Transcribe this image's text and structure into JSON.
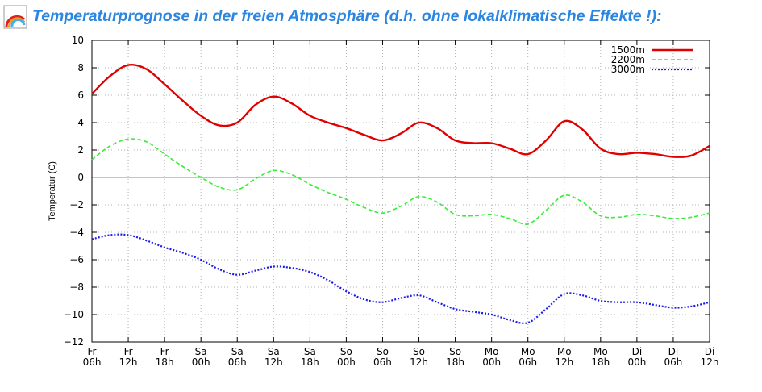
{
  "header": {
    "title": "Temperaturprognose in der freien Atmosphäre (d.h. ohne lokalklimatische Effekte !):",
    "logo_icon": "rainbow-icon"
  },
  "colors": {
    "title": "#2a86e0",
    "series_1500": "#e00000",
    "series_2200": "#33ee33",
    "series_3000": "#1a1aee",
    "grid": "#b0b0b0",
    "zero_line": "#a0a0a0"
  },
  "chart_data": {
    "type": "line",
    "title": "",
    "ylabel": "Temperatur (C)",
    "xlabel": "",
    "ylim": [
      -12,
      10
    ],
    "yticks": [
      "10",
      "8",
      "6",
      "4",
      "2",
      "0",
      "−2",
      "−4",
      "−6",
      "−8",
      "−10",
      "−12"
    ],
    "grid": true,
    "legend_position": "top-right",
    "x_categories": [
      [
        "Fr",
        "06h"
      ],
      [
        "Fr",
        "12h"
      ],
      [
        "Fr",
        "18h"
      ],
      [
        "Sa",
        "00h"
      ],
      [
        "Sa",
        "06h"
      ],
      [
        "Sa",
        "12h"
      ],
      [
        "Sa",
        "18h"
      ],
      [
        "So",
        "00h"
      ],
      [
        "So",
        "06h"
      ],
      [
        "So",
        "12h"
      ],
      [
        "So",
        "18h"
      ],
      [
        "Mo",
        "00h"
      ],
      [
        "Mo",
        "06h"
      ],
      [
        "Mo",
        "12h"
      ],
      [
        "Mo",
        "18h"
      ],
      [
        "Di",
        "00h"
      ],
      [
        "Di",
        "06h"
      ],
      [
        "Di",
        "12h"
      ]
    ],
    "x_hours": [
      0,
      3,
      6,
      9,
      12,
      15,
      18,
      21,
      24,
      27,
      30,
      33,
      36,
      39,
      42,
      45,
      48,
      51,
      54,
      57,
      60,
      63,
      66,
      69,
      72,
      75,
      78,
      81,
      84,
      87,
      90,
      93,
      96,
      99,
      102
    ],
    "series": [
      {
        "name": "1500m",
        "style": "solid",
        "values": [
          6.1,
          7.4,
          8.2,
          7.9,
          6.8,
          5.6,
          4.5,
          3.8,
          4.0,
          5.3,
          5.9,
          5.4,
          4.5,
          4.0,
          3.6,
          3.1,
          2.7,
          3.2,
          4.0,
          3.6,
          2.7,
          2.5,
          2.5,
          2.1,
          1.7,
          2.7,
          4.1,
          3.5,
          2.1,
          1.7,
          1.8,
          1.7,
          1.5,
          1.6,
          2.3
        ]
      },
      {
        "name": "2200m",
        "style": "dashed",
        "values": [
          1.3,
          2.3,
          2.8,
          2.6,
          1.7,
          0.8,
          0.0,
          -0.7,
          -0.9,
          -0.1,
          0.5,
          0.2,
          -0.5,
          -1.1,
          -1.6,
          -2.2,
          -2.6,
          -2.1,
          -1.4,
          -1.8,
          -2.7,
          -2.8,
          -2.7,
          -3.0,
          -3.4,
          -2.4,
          -1.3,
          -1.8,
          -2.8,
          -2.9,
          -2.7,
          -2.8,
          -3.0,
          -2.9,
          -2.6
        ]
      },
      {
        "name": "3000m",
        "style": "dotted",
        "values": [
          -4.5,
          -4.2,
          -4.2,
          -4.6,
          -5.1,
          -5.5,
          -6.0,
          -6.7,
          -7.1,
          -6.8,
          -6.5,
          -6.6,
          -6.9,
          -7.5,
          -8.3,
          -8.9,
          -9.1,
          -8.8,
          -8.6,
          -9.1,
          -9.6,
          -9.8,
          -10.0,
          -10.4,
          -10.6,
          -9.6,
          -8.5,
          -8.6,
          -9.0,
          -9.1,
          -9.1,
          -9.3,
          -9.5,
          -9.4,
          -9.1
        ]
      }
    ]
  }
}
